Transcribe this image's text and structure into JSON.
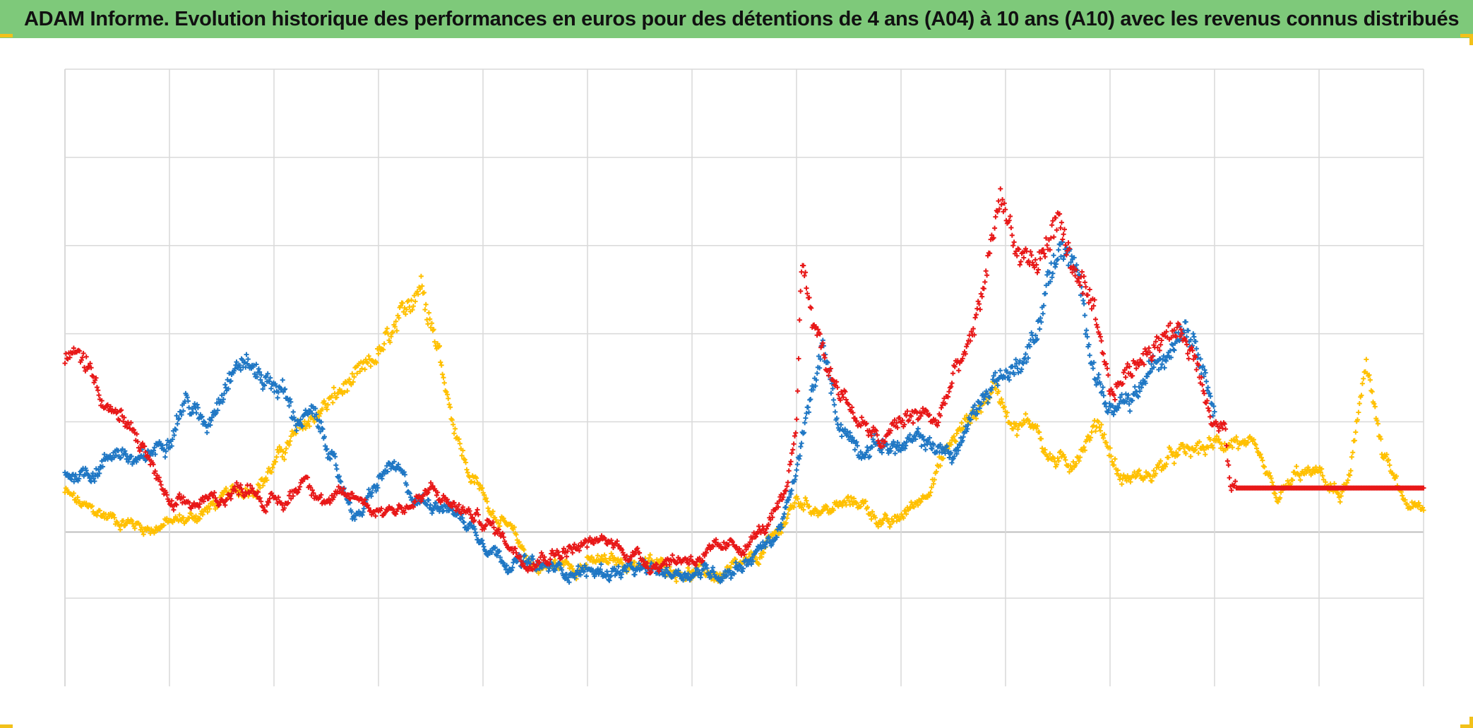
{
  "header": {
    "title": "ADAM Informe. Evolution historique des performances en euros pour des détentions de 4 ans (A04) à 10 ans (A10) avec les revenus connus distribués"
  },
  "colors": {
    "title_bg": "#7ec97a",
    "corner_accent": "#f2c11a",
    "grid": "#d9d9d9",
    "zero_line": "#bfbfbf"
  },
  "chart_data": {
    "type": "scatter",
    "marker": "+",
    "title": "",
    "xlabel": "",
    "ylabel": "",
    "xlim": [
      0,
      13
    ],
    "ylim": [
      -1.75,
      5.25
    ],
    "x_gridlines": 13,
    "y_gridlines": [
      -0.75,
      0,
      1.25,
      2.25,
      3.25,
      4.25,
      5.25
    ],
    "grid": true,
    "legend": "none",
    "series": [
      {
        "name": "yellow",
        "color": "#ffc000",
        "start": 0,
        "end": 13,
        "knots": [
          [
            0,
            0.45
          ],
          [
            0.2,
            0.25
          ],
          [
            0.5,
            0.15
          ],
          [
            0.8,
            0.05
          ],
          [
            1,
            0.1
          ],
          [
            1.2,
            0.15
          ],
          [
            1.5,
            0.35
          ],
          [
            1.9,
            0.6
          ],
          [
            2.2,
            1.1
          ],
          [
            2.6,
            1.55
          ],
          [
            2.9,
            1.85
          ],
          [
            3.2,
            2.35
          ],
          [
            3.4,
            2.85
          ],
          [
            3.5,
            2.45
          ],
          [
            3.6,
            1.95
          ],
          [
            3.7,
            1.35
          ],
          [
            3.85,
            0.7
          ],
          [
            4.1,
            0.25
          ],
          [
            4.5,
            -0.4
          ],
          [
            5,
            -0.35
          ],
          [
            5.5,
            -0.35
          ],
          [
            6,
            -0.45
          ],
          [
            6.3,
            -0.5
          ],
          [
            6.6,
            -0.35
          ],
          [
            6.8,
            -0.05
          ],
          [
            7,
            0.35
          ],
          [
            7.3,
            0.25
          ],
          [
            7.6,
            0.35
          ],
          [
            7.9,
            0.05
          ],
          [
            8.2,
            0.4
          ],
          [
            8.5,
            1.05
          ],
          [
            8.7,
            1.35
          ],
          [
            8.9,
            1.65
          ],
          [
            9.1,
            1.2
          ],
          [
            9.3,
            1.25
          ],
          [
            9.4,
            0.85
          ],
          [
            9.6,
            0.75
          ],
          [
            9.9,
            1.25
          ],
          [
            10.1,
            0.6
          ],
          [
            10.4,
            0.65
          ],
          [
            10.6,
            0.85
          ],
          [
            10.9,
            0.95
          ],
          [
            11.2,
            1.05
          ],
          [
            11.4,
            0.85
          ],
          [
            11.6,
            0.35
          ],
          [
            11.8,
            0.65
          ],
          [
            12,
            0.65
          ],
          [
            12.2,
            0.4
          ],
          [
            12.3,
            0.6
          ],
          [
            12.45,
            2.0
          ],
          [
            12.6,
            0.9
          ],
          [
            12.8,
            0.35
          ],
          [
            13,
            0.2
          ]
        ]
      },
      {
        "name": "blue",
        "color": "#1f77c4",
        "start": 0,
        "end": 11.0,
        "knots": [
          [
            0,
            0.65
          ],
          [
            0.3,
            0.7
          ],
          [
            0.5,
            0.95
          ],
          [
            0.7,
            0.75
          ],
          [
            1,
            1.1
          ],
          [
            1.15,
            1.5
          ],
          [
            1.35,
            1.2
          ],
          [
            1.55,
            1.75
          ],
          [
            1.7,
            1.95
          ],
          [
            1.9,
            1.75
          ],
          [
            2.1,
            1.6
          ],
          [
            2.2,
            1.25
          ],
          [
            2.35,
            1.35
          ],
          [
            2.5,
            1.05
          ],
          [
            2.6,
            0.65
          ],
          [
            2.8,
            0.15
          ],
          [
            3,
            0.55
          ],
          [
            3.1,
            0.75
          ],
          [
            3.2,
            0.65
          ],
          [
            3.35,
            0.35
          ],
          [
            3.6,
            0.35
          ],
          [
            3.9,
            0.05
          ],
          [
            4.2,
            -0.3
          ],
          [
            4.5,
            -0.4
          ],
          [
            5,
            -0.45
          ],
          [
            5.5,
            -0.45
          ],
          [
            6,
            -0.45
          ],
          [
            6.3,
            -0.45
          ],
          [
            6.5,
            -0.35
          ],
          [
            6.8,
            -0.05
          ],
          [
            6.95,
            0.4
          ],
          [
            7.1,
            1.3
          ],
          [
            7.25,
            2.1
          ],
          [
            7.4,
            1.25
          ],
          [
            7.6,
            0.95
          ],
          [
            7.8,
            1.0
          ],
          [
            8.0,
            0.95
          ],
          [
            8.2,
            1.05
          ],
          [
            8.5,
            0.85
          ],
          [
            8.7,
            1.35
          ],
          [
            8.9,
            1.75
          ],
          [
            9.1,
            1.85
          ],
          [
            9.3,
            2.25
          ],
          [
            9.4,
            2.85
          ],
          [
            9.55,
            3.25
          ],
          [
            9.7,
            2.85
          ],
          [
            9.85,
            1.85
          ],
          [
            10.0,
            1.35
          ],
          [
            10.2,
            1.45
          ],
          [
            10.4,
            1.85
          ],
          [
            10.55,
            2.05
          ],
          [
            10.7,
            2.4
          ],
          [
            10.85,
            2.1
          ],
          [
            11.0,
            1.35
          ]
        ]
      },
      {
        "name": "red",
        "color": "#e81818",
        "start": 0,
        "end": 13,
        "knots": [
          [
            0,
            1.95
          ],
          [
            0.1,
            2.0
          ],
          [
            0.2,
            1.95
          ],
          [
            0.4,
            1.45
          ],
          [
            0.55,
            1.25
          ],
          [
            0.75,
            0.95
          ],
          [
            0.85,
            0.7
          ],
          [
            0.95,
            0.45
          ],
          [
            1.0,
            0.25
          ],
          [
            1.2,
            0.3
          ],
          [
            1.4,
            0.35
          ],
          [
            1.6,
            0.45
          ],
          [
            1.8,
            0.55
          ],
          [
            1.9,
            0.35
          ],
          [
            2.1,
            0.3
          ],
          [
            2.3,
            0.65
          ],
          [
            2.5,
            0.35
          ],
          [
            2.8,
            0.4
          ],
          [
            3,
            0.25
          ],
          [
            3.3,
            0.3
          ],
          [
            3.5,
            0.45
          ],
          [
            3.8,
            0.25
          ],
          [
            4.1,
            0.05
          ],
          [
            4.4,
            -0.3
          ],
          [
            4.8,
            -0.2
          ],
          [
            5.2,
            -0.1
          ],
          [
            5.6,
            -0.35
          ],
          [
            5.9,
            -0.3
          ],
          [
            6.2,
            -0.25
          ],
          [
            6.5,
            -0.15
          ],
          [
            6.7,
            0.05
          ],
          [
            6.9,
            0.35
          ],
          [
            7.0,
            1.25
          ],
          [
            7.05,
            3.1
          ],
          [
            7.15,
            2.5
          ],
          [
            7.3,
            1.85
          ],
          [
            7.45,
            1.55
          ],
          [
            7.6,
            1.25
          ],
          [
            7.8,
            1.0
          ],
          [
            8.0,
            1.25
          ],
          [
            8.2,
            1.35
          ],
          [
            8.35,
            1.25
          ],
          [
            8.5,
            1.75
          ],
          [
            8.7,
            2.25
          ],
          [
            8.85,
            3.15
          ],
          [
            8.95,
            3.85
          ],
          [
            9.1,
            3.2
          ],
          [
            9.3,
            3.0
          ],
          [
            9.5,
            3.55
          ],
          [
            9.65,
            3.0
          ],
          [
            9.85,
            2.45
          ],
          [
            10.0,
            1.55
          ],
          [
            10.2,
            1.85
          ],
          [
            10.5,
            2.25
          ],
          [
            10.7,
            2.25
          ],
          [
            10.85,
            1.85
          ],
          [
            11.0,
            1.25
          ],
          [
            11.1,
            1.2
          ],
          [
            11.15,
            0.5
          ],
          [
            11.2,
            0.5
          ],
          [
            13,
            0.5
          ]
        ]
      }
    ]
  }
}
